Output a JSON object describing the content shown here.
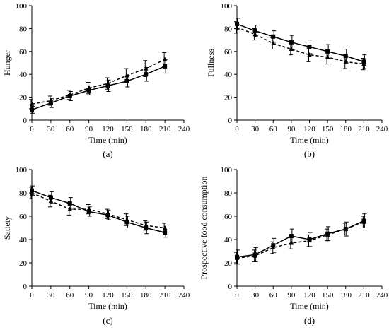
{
  "chart_data": [
    {
      "type": "line",
      "panel_label": "(a)",
      "xlabel": "Time (min)",
      "ylabel": "Hunger",
      "xlim": [
        0,
        240
      ],
      "ylim": [
        0,
        100
      ],
      "xticks": [
        0,
        30,
        60,
        90,
        120,
        150,
        180,
        210,
        240
      ],
      "yticks": [
        0,
        20,
        40,
        60,
        80,
        100
      ],
      "x": [
        0,
        30,
        60,
        90,
        120,
        150,
        180,
        210
      ],
      "series": [
        {
          "style": "solid",
          "marker": "square",
          "values": [
            9,
            15,
            21,
            26,
            30,
            34,
            40,
            47
          ],
          "errors": [
            3,
            4,
            4,
            4,
            5,
            5,
            6,
            6
          ]
        },
        {
          "style": "dashed",
          "marker": "triangle",
          "values": [
            14,
            17,
            22,
            28,
            32,
            39,
            45,
            53
          ],
          "errors": [
            4,
            4,
            4,
            5,
            5,
            6,
            7,
            6
          ]
        }
      ]
    },
    {
      "type": "line",
      "panel_label": "(b)",
      "xlabel": "Time (min)",
      "ylabel": "Fullness",
      "xlim": [
        0,
        240
      ],
      "ylim": [
        0,
        100
      ],
      "xticks": [
        0,
        30,
        60,
        90,
        120,
        150,
        180,
        210,
        240
      ],
      "yticks": [
        0,
        20,
        40,
        60,
        80,
        100
      ],
      "x": [
        0,
        30,
        60,
        90,
        120,
        150,
        180,
        210
      ],
      "series": [
        {
          "style": "solid",
          "marker": "square",
          "values": [
            84,
            78,
            73,
            68,
            64,
            60,
            56,
            51
          ],
          "errors": [
            5,
            5,
            5,
            6,
            6,
            6,
            6,
            6
          ]
        },
        {
          "style": "dashed",
          "marker": "triangle",
          "values": [
            81,
            75,
            67,
            62,
            57,
            55,
            51,
            49
          ],
          "errors": [
            5,
            5,
            5,
            5,
            6,
            6,
            6,
            5
          ]
        }
      ]
    },
    {
      "type": "line",
      "panel_label": "(c)",
      "xlabel": "Time (min)",
      "ylabel": "Satiety",
      "xlim": [
        0,
        240
      ],
      "ylim": [
        0,
        100
      ],
      "xticks": [
        0,
        30,
        60,
        90,
        120,
        150,
        180,
        210,
        240
      ],
      "yticks": [
        0,
        20,
        40,
        60,
        80,
        100
      ],
      "x": [
        0,
        30,
        60,
        90,
        120,
        150,
        180,
        210
      ],
      "series": [
        {
          "style": "solid",
          "marker": "square",
          "values": [
            82,
            76,
            71,
            64,
            61,
            55,
            50,
            46
          ],
          "errors": [
            4,
            5,
            5,
            4,
            4,
            5,
            5,
            4
          ]
        },
        {
          "style": "dashed",
          "marker": "triangle",
          "values": [
            80,
            73,
            66,
            66,
            62,
            57,
            52,
            50
          ],
          "errors": [
            5,
            5,
            5,
            4,
            4,
            5,
            4,
            4
          ]
        }
      ]
    },
    {
      "type": "line",
      "panel_label": "(d)",
      "xlabel": "Time (min)",
      "ylabel": "Prospective food consumption",
      "xlim": [
        0,
        240
      ],
      "ylim": [
        0,
        100
      ],
      "xticks": [
        0,
        30,
        60,
        90,
        120,
        150,
        180,
        210,
        240
      ],
      "yticks": [
        0,
        20,
        40,
        60,
        80,
        100
      ],
      "x": [
        0,
        30,
        60,
        90,
        120,
        150,
        180,
        210
      ],
      "series": [
        {
          "style": "solid",
          "marker": "square",
          "values": [
            25,
            27,
            35,
            43,
            40,
            45,
            49,
            56
          ],
          "errors": [
            6,
            6,
            6,
            6,
            6,
            6,
            6,
            6
          ]
        },
        {
          "style": "dashed",
          "marker": "triangle",
          "values": [
            24,
            26,
            33,
            37,
            39,
            44,
            49,
            55
          ],
          "errors": [
            5,
            5,
            5,
            5,
            5,
            5,
            5,
            5
          ]
        }
      ]
    }
  ]
}
